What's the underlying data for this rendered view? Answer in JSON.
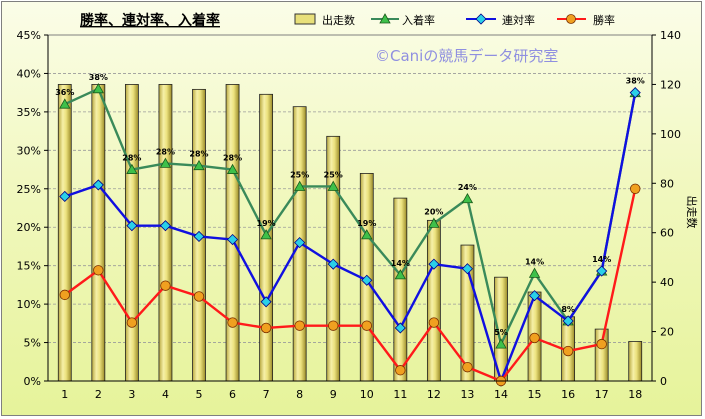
{
  "chart_data": {
    "type": "bar",
    "title": "勝率、連対率、入着率",
    "watermark": "©Caniの競馬データ研究室",
    "categories": [
      "1",
      "2",
      "3",
      "4",
      "5",
      "6",
      "7",
      "8",
      "9",
      "10",
      "11",
      "12",
      "13",
      "14",
      "15",
      "16",
      "17",
      "18"
    ],
    "y_left": {
      "min": 0,
      "max": 45,
      "step": 5,
      "format": "percent"
    },
    "y_right": {
      "min": 0,
      "max": 140,
      "step": 20,
      "label": "出走数"
    },
    "bar_series": {
      "name": "出走数",
      "color": "#e8e07a",
      "values": [
        120,
        120,
        120,
        120,
        118,
        120,
        116,
        111,
        99,
        84,
        74,
        65,
        55,
        42,
        36,
        26,
        21,
        16
      ]
    },
    "series": [
      {
        "name": "入着率",
        "color": "#3a8a5a",
        "marker": "triangle",
        "marker_color": "#3ec04a",
        "values": [
          36,
          38,
          27.5,
          28.3,
          28,
          27.5,
          19,
          25.3,
          25.3,
          19,
          13.8,
          20.5,
          23.7,
          4.8,
          14,
          7.8,
          14.3,
          37.5
        ],
        "labels": [
          "36%",
          "38%",
          "28%",
          "28%",
          "28%",
          "28%",
          "19%",
          "25%",
          "25%",
          "19%",
          "14%",
          "20%",
          "24%",
          "5%",
          "14%",
          "8%",
          "14%",
          "38%"
        ]
      },
      {
        "name": "連対率",
        "color": "#1010e0",
        "marker": "diamond",
        "marker_color": "#2ad0e8",
        "values": [
          24,
          25.5,
          20.2,
          20.2,
          18.8,
          18.4,
          10.3,
          18,
          15.2,
          13.1,
          6.9,
          15.2,
          14.6,
          0,
          11.1,
          7.8,
          14.3,
          37.5
        ]
      },
      {
        "name": "勝率",
        "color": "#ff1a1a",
        "marker": "circle",
        "marker_color": "#f0a020",
        "values": [
          11.2,
          14.4,
          7.6,
          12.4,
          11,
          7.6,
          6.9,
          7.2,
          7.2,
          7.2,
          1.4,
          7.6,
          1.8,
          0,
          5.6,
          3.9,
          4.8,
          25
        ]
      }
    ],
    "legend": [
      "出走数",
      "入着率",
      "連対率",
      "勝率"
    ],
    "legend_position": "top"
  }
}
